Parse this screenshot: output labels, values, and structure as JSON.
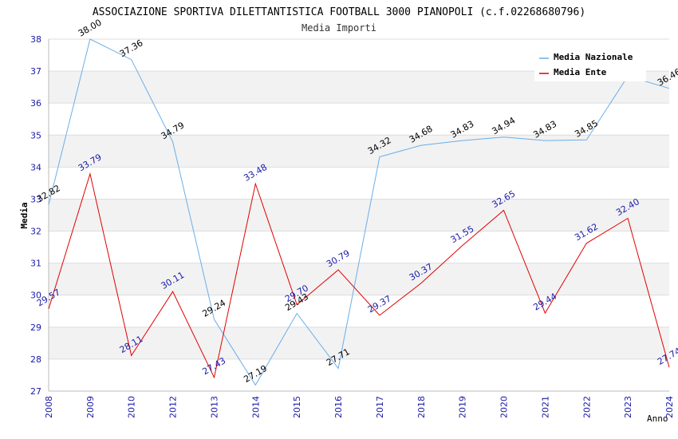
{
  "chart_data": {
    "type": "line",
    "title": "ASSOCIAZIONE SPORTIVA DILETTANTISTICA FOOTBALL 3000 PIANOPOLI (c.f.02268680796)",
    "subtitle": "Media Importi",
    "xlabel": "Anno",
    "ylabel": "Media",
    "ylim": [
      27,
      38
    ],
    "yticks": [
      27,
      28,
      29,
      30,
      31,
      32,
      33,
      34,
      35,
      36,
      37,
      38
    ],
    "categories": [
      "2008",
      "2009",
      "2010",
      "2012",
      "2013",
      "2014",
      "2015",
      "2016",
      "2017",
      "2018",
      "2019",
      "2020",
      "2021",
      "2022",
      "2023",
      "2024"
    ],
    "grid": true,
    "legend_position": "top-right",
    "series": [
      {
        "name": "Media Nazionale",
        "color": "#6aaee8",
        "label_color": "#000000",
        "values": [
          32.82,
          38.0,
          37.36,
          34.79,
          29.24,
          27.19,
          29.43,
          27.71,
          34.32,
          34.68,
          34.83,
          34.94,
          34.83,
          34.85,
          36.84,
          36.46
        ],
        "labels": [
          "32.82",
          "38.00",
          "37.36",
          "34.79",
          "29.24",
          "27.19",
          "29.43",
          "27.71",
          "34.32",
          "34.68",
          "34.83",
          "34.94",
          "34.83",
          "34.85",
          "",
          "36.46"
        ]
      },
      {
        "name": "Media Ente",
        "color": "#e00000",
        "label_color": "#1a1aa8",
        "values": [
          29.57,
          33.79,
          28.11,
          30.11,
          27.43,
          33.48,
          29.7,
          30.79,
          29.37,
          30.37,
          31.55,
          32.65,
          29.44,
          31.62,
          32.4,
          27.74
        ],
        "labels": [
          "29.57",
          "33.79",
          "28.11",
          "30.11",
          "27.43",
          "33.48",
          "29.70",
          "30.79",
          "29.37",
          "30.37",
          "31.55",
          "32.65",
          "29.44",
          "31.62",
          "32.40",
          "27.74"
        ]
      }
    ]
  }
}
